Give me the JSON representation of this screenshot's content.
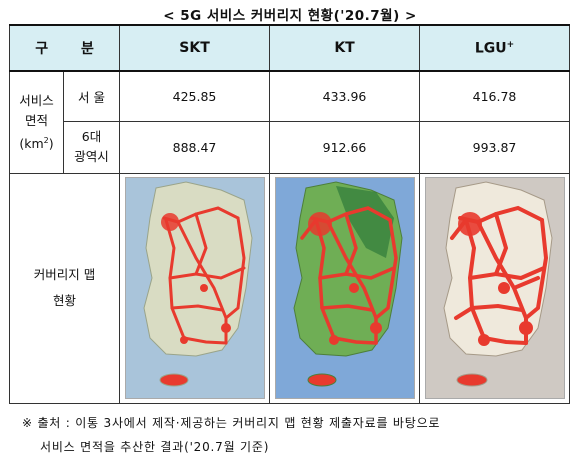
{
  "title": "< 5G 서비스 커버리지 현황('20.7월) >",
  "header": {
    "gubun": "구 분",
    "skt": "SKT",
    "kt": "KT",
    "lgu": "LGU",
    "lgu_sup": "+"
  },
  "row_area": {
    "label_line1": "서비스",
    "label_line2": "면적",
    "label_line3_pre": "(km",
    "label_line3_sup": "2",
    "label_line3_post": ")"
  },
  "row_seoul": {
    "label": "서 울",
    "skt": "425.85",
    "kt": "433.96",
    "lgu": "416.78"
  },
  "row_metro": {
    "label_line1": "6대",
    "label_line2": "광역시",
    "skt": "888.47",
    "kt": "912.66",
    "lgu": "993.87"
  },
  "row_map": {
    "label_line1": "커버리지 맵",
    "label_line2": "현황"
  },
  "footnote": {
    "line1": "※ 출처 : 이통 3사에서 제작·제공하는 커버리지 맵 현황 제출자료를 바탕으로",
    "line2": "서비스 면적을 추산한 결과('20.7월 기준)"
  },
  "colors": {
    "header_bg": "#d7eef3",
    "coverage": "#e83a2e",
    "sea_skt": "#a9c4da",
    "sea_kt": "#7fa8d8",
    "sea_lgu": "#cfc9c3"
  }
}
